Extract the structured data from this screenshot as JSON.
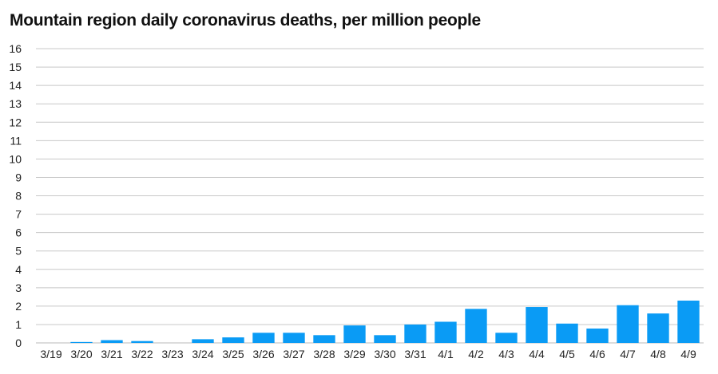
{
  "chart_data": {
    "type": "bar",
    "title": "Mountain region daily coronavirus deaths, per million people",
    "xlabel": "",
    "ylabel": "",
    "categories": [
      "3/19",
      "3/20",
      "3/21",
      "3/22",
      "3/23",
      "3/24",
      "3/25",
      "3/26",
      "3/27",
      "3/28",
      "3/29",
      "3/30",
      "3/31",
      "4/1",
      "4/2",
      "4/3",
      "4/4",
      "4/5",
      "4/6",
      "4/7",
      "4/8",
      "4/9"
    ],
    "values": [
      0,
      0.05,
      0.15,
      0.1,
      0,
      0.2,
      0.3,
      0.55,
      0.55,
      0.42,
      0.95,
      0.42,
      1.0,
      1.15,
      1.85,
      0.55,
      1.95,
      1.05,
      0.78,
      2.05,
      1.6,
      2.3
    ],
    "ylim": [
      0,
      16
    ],
    "yticks": [
      0,
      1,
      2,
      3,
      4,
      5,
      6,
      7,
      8,
      9,
      10,
      11,
      12,
      13,
      14,
      15,
      16
    ],
    "grid": true,
    "bar_color": "#0a9bf5",
    "grid_color": "#c8c8c8"
  }
}
